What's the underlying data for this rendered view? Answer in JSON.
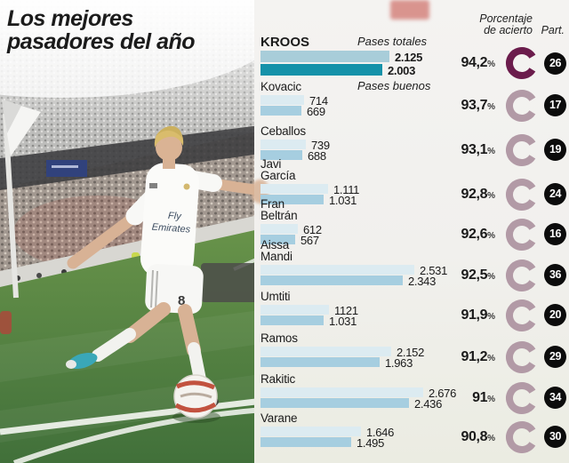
{
  "title": {
    "line1": "Los mejores",
    "line2": "pasadores del año"
  },
  "headers": {
    "porcentaje_line1": "Porcentaje",
    "porcentaje_line2": "de acierto",
    "part": "Part."
  },
  "legend": {
    "pases_totales": "Pases totales",
    "pases_buenos": "Pases buenos"
  },
  "photo": {
    "jersey_sponsor_line1": "Fly",
    "jersey_sponsor_line2": "Emirates",
    "shorts_number": "8"
  },
  "colors": {
    "bar_totales": "#dcebf1",
    "bar_buenos": "#a6cee0",
    "bar_totales_highlight": "#a8cdd9",
    "bar_buenos_highlight": "#1592a9",
    "donut": "#b29aa6",
    "donut_highlight": "#6b1c4c",
    "badge_bg": "#0c0c0c",
    "badge_text": "#ffffff"
  },
  "chart_data": {
    "type": "bar",
    "orientation": "horizontal",
    "title": "Los mejores pasadores del año",
    "series_labels": [
      "Pases totales",
      "Pases buenos"
    ],
    "percent_symbol": "%",
    "max_value": 2676,
    "players": [
      {
        "name_lines": [
          "KROOS"
        ],
        "pases_totales": 2125,
        "pases_totales_label": "2.125",
        "pases_buenos": 2003,
        "pases_buenos_label": "2.003",
        "accuracy_pct": 94.2,
        "accuracy_label": "94,2",
        "partidos": "26",
        "highlight": true
      },
      {
        "name_lines": [
          "Kovacic"
        ],
        "pases_totales": 714,
        "pases_totales_label": "714",
        "pases_buenos": 669,
        "pases_buenos_label": "669",
        "accuracy_pct": 93.7,
        "accuracy_label": "93,7",
        "partidos": "17",
        "highlight": false
      },
      {
        "name_lines": [
          "Ceballos"
        ],
        "pases_totales": 739,
        "pases_totales_label": "739",
        "pases_buenos": 688,
        "pases_buenos_label": "688",
        "accuracy_pct": 93.1,
        "accuracy_label": "93,1",
        "partidos": "19",
        "highlight": false
      },
      {
        "name_lines": [
          "Javi",
          "García"
        ],
        "pases_totales": 1111,
        "pases_totales_label": "1.111",
        "pases_buenos": 1031,
        "pases_buenos_label": "1.031",
        "accuracy_pct": 92.8,
        "accuracy_label": "92,8",
        "partidos": "24",
        "highlight": false
      },
      {
        "name_lines": [
          "Fran",
          "Beltrán"
        ],
        "pases_totales": 612,
        "pases_totales_label": "612",
        "pases_buenos": 567,
        "pases_buenos_label": "567",
        "accuracy_pct": 92.6,
        "accuracy_label": "92,6",
        "partidos": "16",
        "highlight": false
      },
      {
        "name_lines": [
          "Aissa",
          "Mandi"
        ],
        "pases_totales": 2531,
        "pases_totales_label": "2.531",
        "pases_buenos": 2343,
        "pases_buenos_label": "2.343",
        "accuracy_pct": 92.5,
        "accuracy_label": "92,5",
        "partidos": "36",
        "highlight": false
      },
      {
        "name_lines": [
          "Umtiti"
        ],
        "pases_totales": 1121,
        "pases_totales_label": "1121",
        "pases_buenos": 1031,
        "pases_buenos_label": "1.031",
        "accuracy_pct": 91.9,
        "accuracy_label": "91,9",
        "partidos": "20",
        "highlight": false
      },
      {
        "name_lines": [
          "Ramos"
        ],
        "pases_totales": 2152,
        "pases_totales_label": "2.152",
        "pases_buenos": 1963,
        "pases_buenos_label": "1.963",
        "accuracy_pct": 91.2,
        "accuracy_label": "91,2",
        "partidos": "29",
        "highlight": false
      },
      {
        "name_lines": [
          "Rakitic"
        ],
        "pases_totales": 2676,
        "pases_totales_label": "2.676",
        "pases_buenos": 2436,
        "pases_buenos_label": "2.436",
        "accuracy_pct": 91.0,
        "accuracy_label": "91",
        "partidos": "34",
        "highlight": false
      },
      {
        "name_lines": [
          "Varane"
        ],
        "pases_totales": 1646,
        "pases_totales_label": "1.646",
        "pases_buenos": 1495,
        "pases_buenos_label": "1.495",
        "accuracy_pct": 90.8,
        "accuracy_label": "90,8",
        "partidos": "30",
        "highlight": false
      }
    ]
  }
}
